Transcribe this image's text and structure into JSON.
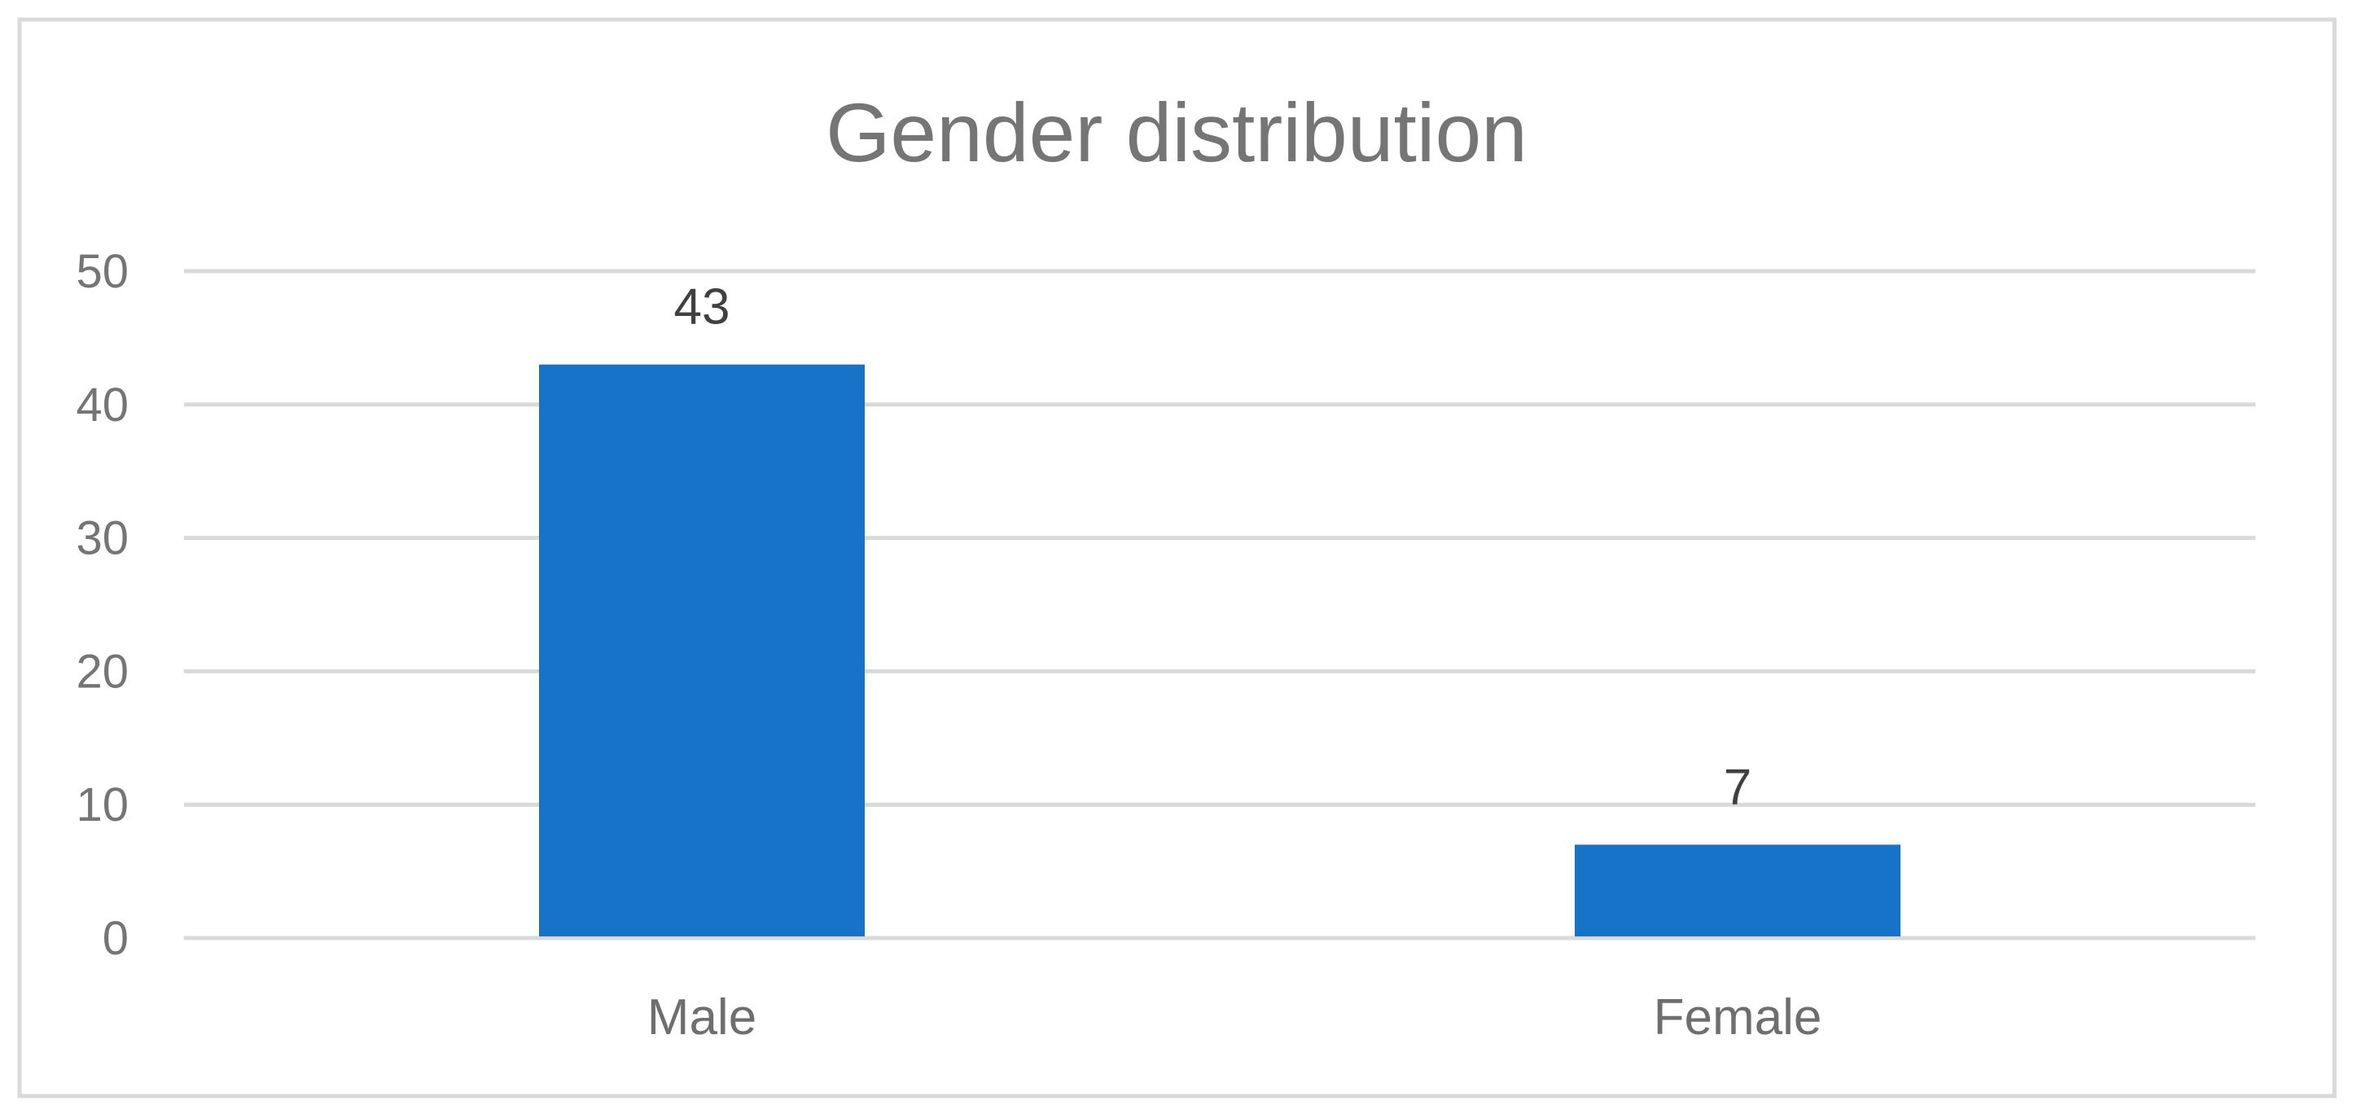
{
  "chart_data": {
    "type": "bar",
    "title": "Gender distribution",
    "xlabel": "",
    "ylabel": "",
    "categories": [
      "Male",
      "Female"
    ],
    "series": [
      {
        "values": [
          43,
          7
        ]
      }
    ],
    "data_labels": [
      "43",
      "7"
    ],
    "ylim": [
      0,
      50
    ],
    "yticks": [
      0,
      10,
      20,
      30,
      40,
      50
    ],
    "ytick_labels": [
      "0",
      "10",
      "20",
      "30",
      "40",
      "50"
    ],
    "grid": true,
    "legend": "none",
    "colors": {
      "bar": "#1773c8",
      "grid": "#d9d9d9",
      "border": "#d9d9d9",
      "text": "#757575"
    }
  }
}
